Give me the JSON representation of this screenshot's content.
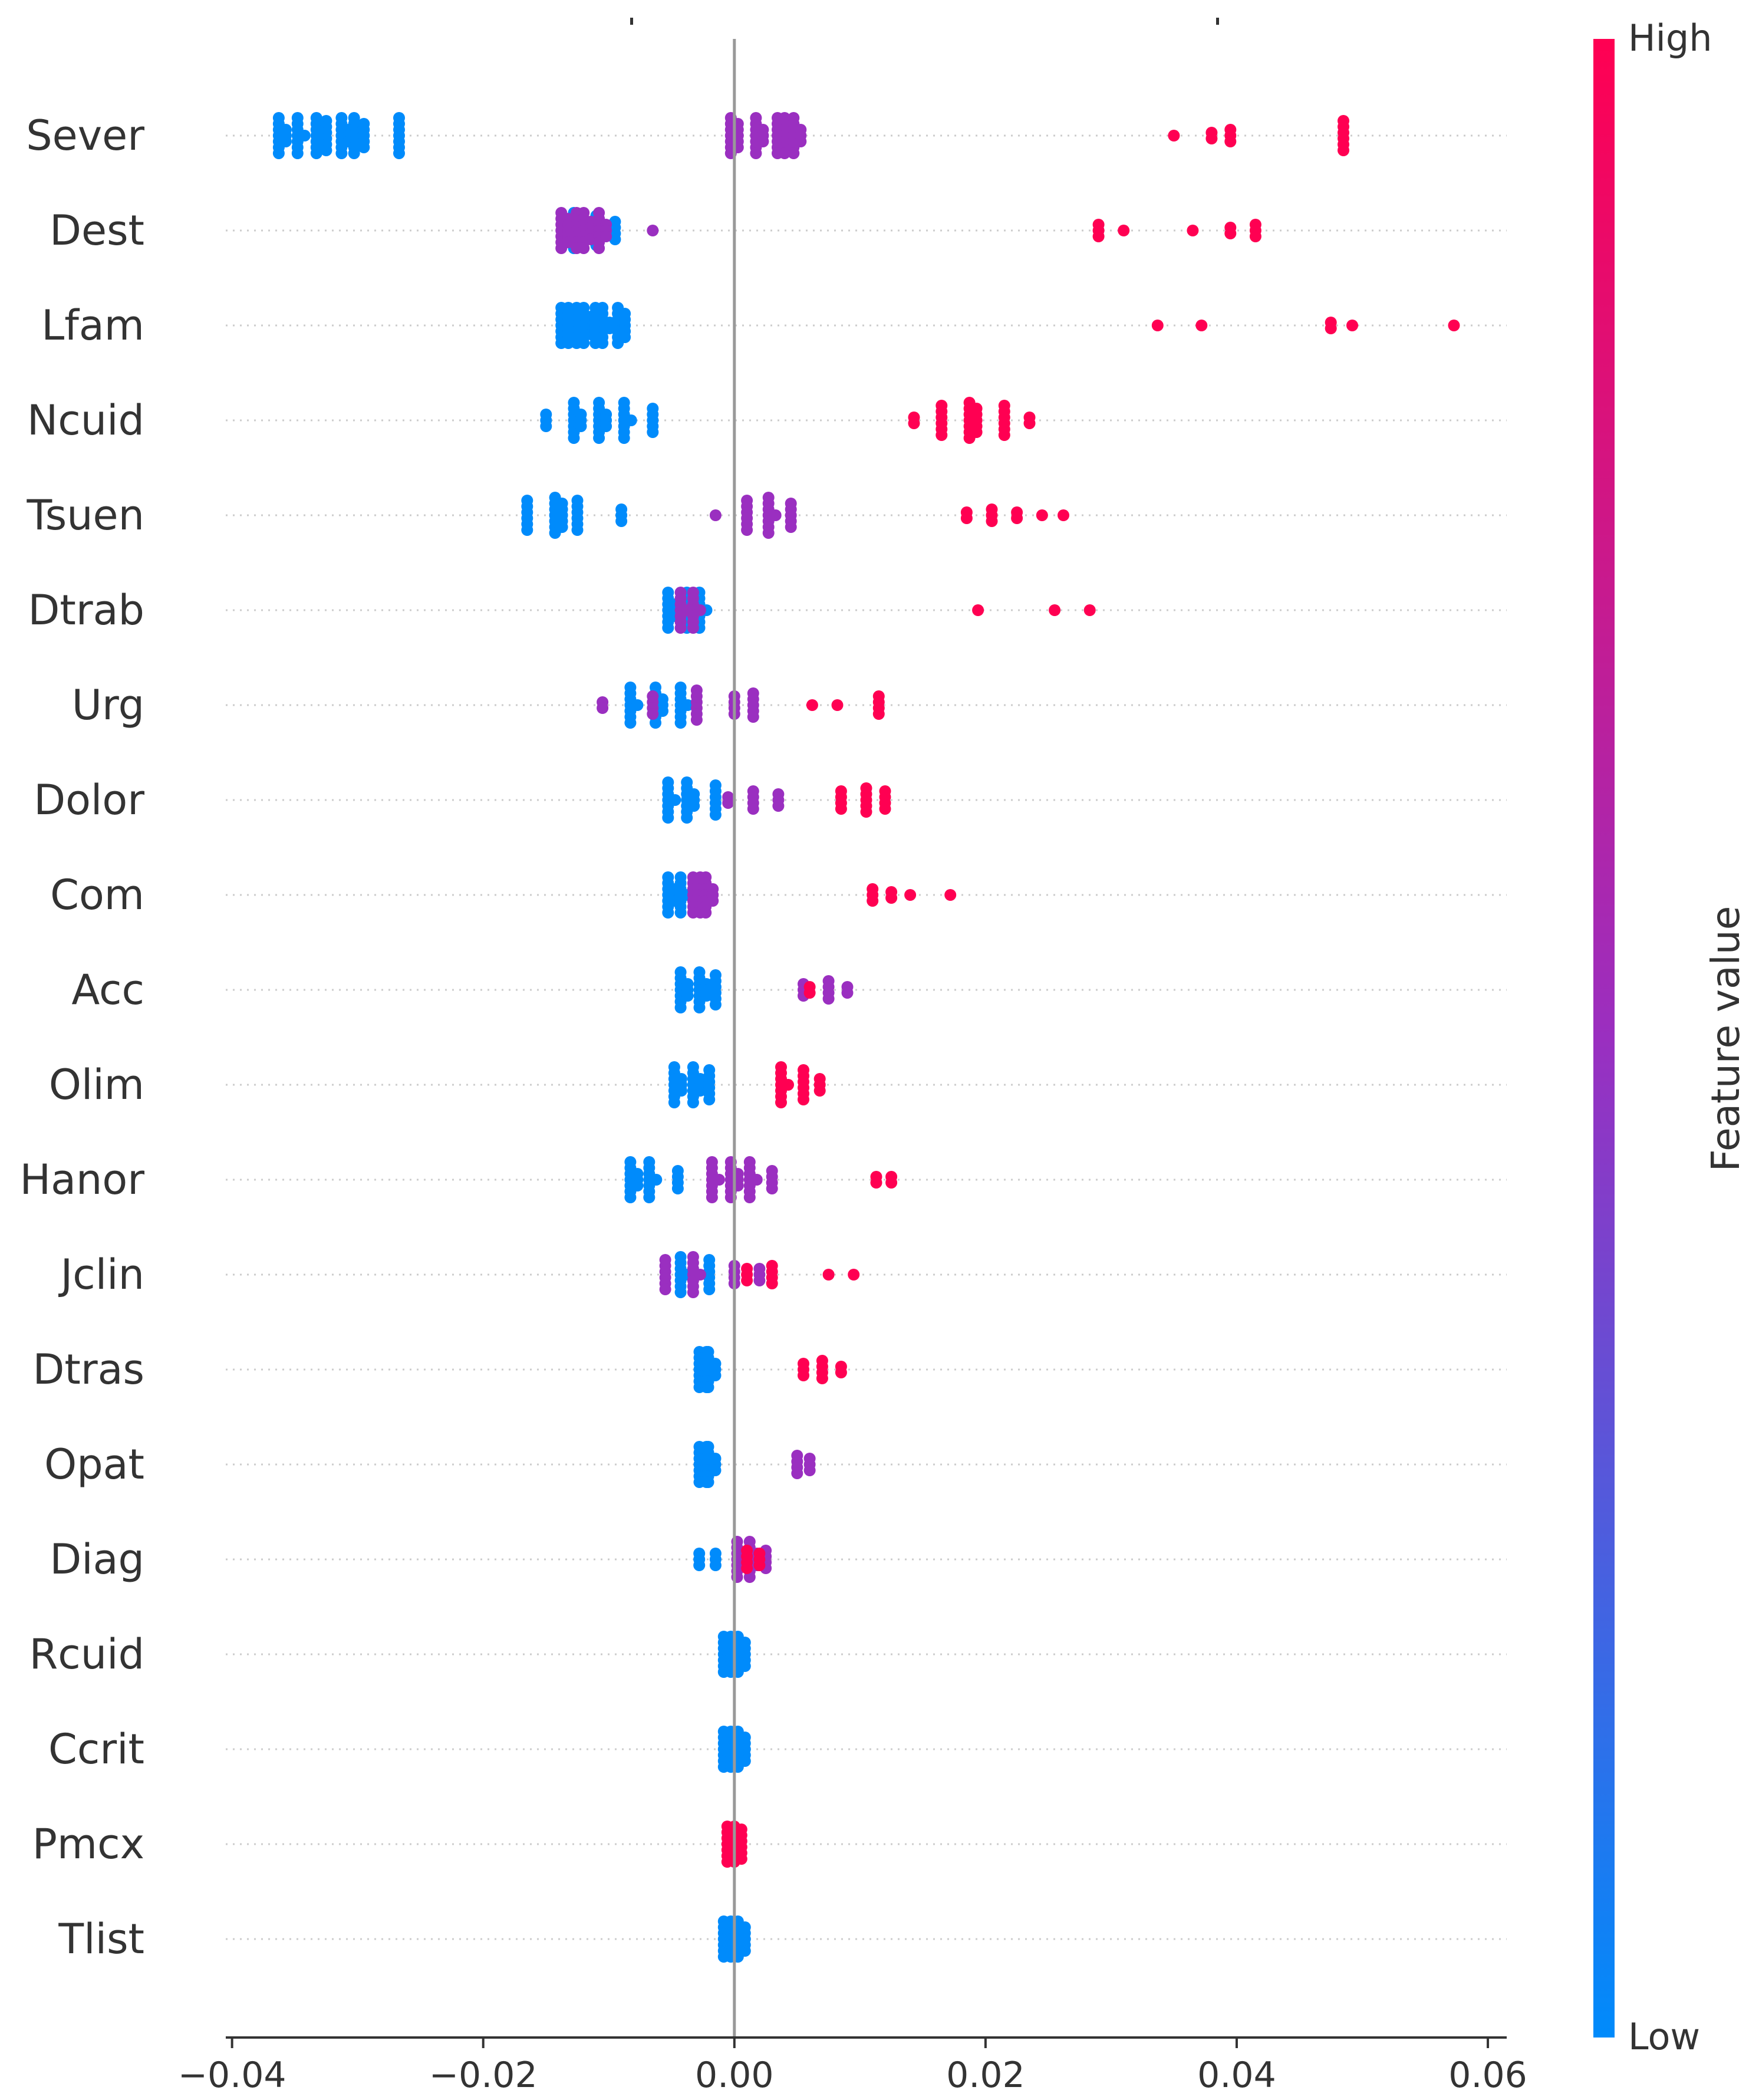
{
  "chart_data": {
    "type": "scatter",
    "subtype": "beeswarm",
    "xlim": [
      -0.0405,
      0.0615
    ],
    "x_ticks": [
      -0.04,
      -0.02,
      0.0,
      0.02,
      0.04,
      0.06
    ],
    "x_tick_labels": [
      "−0.04",
      "−0.02",
      "0.00",
      "0.02",
      "0.04",
      "0.06"
    ],
    "zero_line": 0,
    "grid": "dotted horizontal row guides",
    "colorbar": {
      "title": "Feature value",
      "high_label": "High",
      "low_label": "Low",
      "low_color": "#008bfb",
      "mid_color": "#9a2fc0",
      "high_color": "#ff0052"
    },
    "features": [
      {
        "name": "Sever",
        "low": [
          [
            -0.036,
            10
          ],
          [
            -0.0345,
            8
          ],
          [
            -0.033,
            12
          ],
          [
            -0.0325,
            6
          ],
          [
            -0.031,
            10
          ],
          [
            -0.03,
            9
          ],
          [
            -0.0295,
            5
          ],
          [
            -0.0267,
            7
          ]
        ],
        "mid": [
          [
            0,
            12
          ],
          [
            0.002,
            10
          ],
          [
            0.004,
            20
          ],
          [
            0.005,
            10
          ]
        ],
        "high": [
          [
            0.035,
            1
          ],
          [
            0.038,
            2
          ],
          [
            0.0395,
            3
          ],
          [
            0.0485,
            6
          ]
        ]
      },
      {
        "name": "Dest",
        "low": [
          [
            -0.0125,
            8
          ],
          [
            -0.011,
            6
          ],
          [
            -0.0095,
            4
          ]
        ],
        "mid": [
          [
            -0.0135,
            12
          ],
          [
            -0.012,
            18
          ],
          [
            -0.0105,
            10
          ],
          [
            -0.0065,
            1
          ]
        ],
        "high": [
          [
            0.029,
            3
          ],
          [
            0.031,
            1
          ],
          [
            0.0365,
            1
          ],
          [
            0.0395,
            2
          ],
          [
            0.0415,
            3
          ]
        ]
      },
      {
        "name": "Lfam",
        "low": [
          [
            -0.0135,
            14
          ],
          [
            -0.012,
            18
          ],
          [
            -0.0105,
            16
          ],
          [
            -0.009,
            12
          ]
        ],
        "mid": [],
        "high": [
          [
            0.0337,
            1
          ],
          [
            0.0372,
            1
          ],
          [
            0.0475,
            2
          ],
          [
            0.0492,
            1
          ],
          [
            0.0573,
            1
          ]
        ]
      },
      {
        "name": "Ncuid",
        "low": [
          [
            -0.015,
            3
          ],
          [
            -0.0125,
            10
          ],
          [
            -0.0105,
            10
          ],
          [
            -0.0085,
            8
          ],
          [
            -0.0065,
            5
          ]
        ],
        "mid": [],
        "high": [
          [
            0.0143,
            2
          ],
          [
            0.0165,
            6
          ],
          [
            0.019,
            12
          ],
          [
            0.0215,
            6
          ],
          [
            0.0235,
            2
          ]
        ]
      },
      {
        "name": "Tsuen",
        "low": [
          [
            -0.0165,
            6
          ],
          [
            -0.014,
            12
          ],
          [
            -0.0125,
            6
          ],
          [
            -0.009,
            3
          ]
        ],
        "mid": [
          [
            -0.0015,
            1
          ],
          [
            0.001,
            6
          ],
          [
            0.003,
            8
          ],
          [
            0.0045,
            5
          ]
        ],
        "high": [
          [
            0.0185,
            2
          ],
          [
            0.0205,
            3
          ],
          [
            0.0225,
            2
          ],
          [
            0.0245,
            1
          ],
          [
            0.0262,
            1
          ]
        ]
      },
      {
        "name": "Dtrab",
        "low": [
          [
            -0.005,
            10
          ],
          [
            -0.0035,
            12
          ],
          [
            -0.0025,
            8
          ]
        ],
        "mid": [
          [
            -0.004,
            8
          ],
          [
            -0.003,
            8
          ]
        ],
        "high": [
          [
            0.0194,
            1
          ],
          [
            0.0255,
            1
          ],
          [
            0.0283,
            1
          ]
        ]
      },
      {
        "name": "Urg",
        "low": [
          [
            -0.008,
            8
          ],
          [
            -0.006,
            10
          ],
          [
            -0.004,
            8
          ]
        ],
        "mid": [
          [
            -0.0105,
            2
          ],
          [
            -0.0065,
            4
          ],
          [
            -0.003,
            6
          ],
          [
            0,
            4
          ],
          [
            0.0015,
            5
          ]
        ],
        "high": [
          [
            0.0062,
            1
          ],
          [
            0.0082,
            1
          ],
          [
            0.0115,
            4
          ]
        ]
      },
      {
        "name": "Dolor",
        "low": [
          [
            -0.005,
            8
          ],
          [
            -0.0035,
            10
          ],
          [
            -0.0015,
            6
          ]
        ],
        "mid": [
          [
            -0.0005,
            2
          ],
          [
            0.0015,
            4
          ],
          [
            0.0035,
            3
          ]
        ],
        "high": [
          [
            0.0085,
            4
          ],
          [
            0.0105,
            5
          ],
          [
            0.012,
            4
          ]
        ]
      },
      {
        "name": "Com",
        "low": [
          [
            -0.005,
            10
          ],
          [
            -0.004,
            8
          ]
        ],
        "mid": [
          [
            -0.003,
            14
          ],
          [
            -0.002,
            10
          ]
        ],
        "high": [
          [
            0.011,
            3
          ],
          [
            0.0125,
            2
          ],
          [
            0.014,
            1
          ],
          [
            0.0172,
            1
          ]
        ]
      },
      {
        "name": "Acc",
        "low": [
          [
            -0.004,
            10
          ],
          [
            -0.0025,
            10
          ],
          [
            -0.0015,
            6
          ]
        ],
        "mid": [
          [
            0.0055,
            3
          ],
          [
            0.0075,
            4
          ],
          [
            0.009,
            2
          ]
        ],
        "high": [
          [
            0.006,
            2
          ]
        ]
      },
      {
        "name": "Olim",
        "low": [
          [
            -0.0045,
            10
          ],
          [
            -0.003,
            10
          ],
          [
            -0.002,
            6
          ]
        ],
        "mid": [],
        "high": [
          [
            0.004,
            8
          ],
          [
            0.0055,
            6
          ],
          [
            0.0068,
            3
          ]
        ]
      },
      {
        "name": "Hanor",
        "low": [
          [
            -0.008,
            10
          ],
          [
            -0.0065,
            8
          ],
          [
            -0.0045,
            4
          ]
        ],
        "mid": [
          [
            -0.0015,
            8
          ],
          [
            0,
            10
          ],
          [
            0.0015,
            8
          ],
          [
            0.003,
            4
          ]
        ],
        "high": [
          [
            0.0113,
            2
          ],
          [
            0.0125,
            2
          ]
        ]
      },
      {
        "name": "Jclin",
        "low": [
          [
            -0.004,
            8
          ],
          [
            -0.002,
            6
          ]
        ],
        "mid": [
          [
            -0.0055,
            6
          ],
          [
            -0.003,
            8
          ],
          [
            0,
            4
          ],
          [
            0.002,
            3
          ]
        ],
        "high": [
          [
            0.001,
            3
          ],
          [
            0.003,
            4
          ],
          [
            0.0075,
            1
          ],
          [
            0.0095,
            1
          ]
        ]
      },
      {
        "name": "Dtras",
        "low": [
          [
            -0.0025,
            14
          ],
          [
            -0.0018,
            10
          ]
        ],
        "mid": [],
        "high": [
          [
            0.0055,
            3
          ],
          [
            0.007,
            4
          ],
          [
            0.0085,
            2
          ]
        ]
      },
      {
        "name": "Opat",
        "low": [
          [
            -0.0025,
            14
          ],
          [
            -0.0018,
            10
          ]
        ],
        "mid": [
          [
            0.005,
            4
          ],
          [
            0.006,
            3
          ]
        ],
        "high": []
      },
      {
        "name": "Diag",
        "low": [
          [
            -0.0028,
            3
          ],
          [
            -0.0015,
            3
          ]
        ],
        "mid": [
          [
            0.0005,
            8
          ],
          [
            0.0015,
            10
          ],
          [
            0.0025,
            4
          ]
        ],
        "high": [
          [
            0.001,
            4
          ],
          [
            0.002,
            3
          ]
        ]
      },
      {
        "name": "Rcuid",
        "low": [
          [
            0,
            26
          ]
        ],
        "mid": [],
        "high": []
      },
      {
        "name": "Ccrit",
        "low": [
          [
            0,
            26
          ]
        ],
        "mid": [],
        "high": []
      },
      {
        "name": "Pmcx",
        "low": [
          [
            0,
            6
          ]
        ],
        "mid": [],
        "high": [
          [
            0,
            20
          ]
        ]
      },
      {
        "name": "Tlist",
        "low": [
          [
            0,
            26
          ]
        ],
        "mid": [],
        "high": []
      }
    ]
  }
}
